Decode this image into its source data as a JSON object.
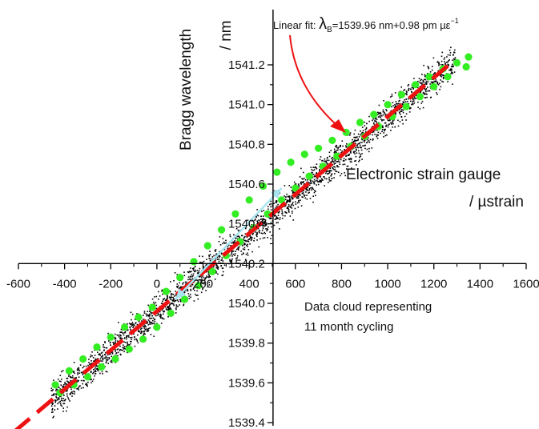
{
  "chart_data": {
    "type": "scatter",
    "title": "",
    "xlabel": "Electronic strain gauge",
    "xlabel_unit": "/ µstrain",
    "ylabel": "Bragg wavelength",
    "ylabel_unit": "/ nm",
    "xlim": [
      -600,
      1600
    ],
    "ylim": [
      1539.4,
      1541.3
    ],
    "x_ticks": [
      -600,
      -400,
      -200,
      0,
      200,
      400,
      600,
      800,
      1000,
      1200,
      1400,
      1600
    ],
    "x_tick_labels": [
      "-600",
      "-400",
      "-200",
      "0",
      "200",
      "400",
      "600",
      "800",
      "1000",
      "1200",
      "1400",
      "1600"
    ],
    "y_ticks": [
      1539.4,
      1539.6,
      1539.8,
      1540.0,
      1540.2,
      1540.4,
      1540.6,
      1540.8,
      1541.0,
      1541.2
    ],
    "y_tick_labels": [
      "1539.4",
      "1539.6",
      "1539.8",
      "1540.0",
      "1540.2",
      "1540.4",
      "1540.6",
      "1540.8",
      "1541.0",
      "1541.2"
    ],
    "axes_cross": {
      "x": 0,
      "y": 1540.2
    },
    "grid": false,
    "fit": {
      "label_prefix": "Linear fit: ",
      "lambda_symbol": "λ",
      "lambda_sub": "B",
      "label_rest": "=1539.96 nm+0.98 pm µε",
      "label_sup": "−1",
      "intercept": 1539.96,
      "slope_nm_per_ustrain": 0.00098,
      "x_range": [
        -620,
        1260
      ],
      "color": "#ee1111"
    },
    "cloud": {
      "annotation_lines": [
        "Data cloud representing",
        "11 month cycling"
      ],
      "color": "#000000",
      "x_range": [
        -460,
        1290
      ]
    },
    "envelope_series": [
      {
        "color": "#33ee22",
        "points": [
          [
            -440,
            1539.59
          ],
          [
            -380,
            1539.66
          ],
          [
            -320,
            1539.72
          ],
          [
            -260,
            1539.78
          ],
          [
            -200,
            1539.83
          ],
          [
            -140,
            1539.88
          ],
          [
            -80,
            1539.93
          ],
          [
            -20,
            1539.98
          ],
          [
            40,
            1540.06
          ],
          [
            100,
            1540.13
          ],
          [
            160,
            1540.21
          ],
          [
            220,
            1540.29
          ],
          [
            280,
            1540.37
          ],
          [
            340,
            1540.45
          ],
          [
            400,
            1540.52
          ],
          [
            460,
            1540.59
          ],
          [
            520,
            1540.66
          ],
          [
            580,
            1540.71
          ],
          [
            640,
            1540.75
          ],
          [
            700,
            1540.78
          ],
          [
            760,
            1540.82
          ],
          [
            820,
            1540.86
          ],
          [
            880,
            1540.91
          ],
          [
            940,
            1540.95
          ],
          [
            1000,
            1541.0
          ],
          [
            1060,
            1541.05
          ],
          [
            1120,
            1541.1
          ],
          [
            1180,
            1541.14
          ],
          [
            1240,
            1541.18
          ],
          [
            1300,
            1541.21
          ],
          [
            1350,
            1541.24
          ],
          [
            -420,
            1539.55
          ],
          [
            -360,
            1539.59
          ],
          [
            -300,
            1539.63
          ],
          [
            -240,
            1539.68
          ],
          [
            -180,
            1539.72
          ],
          [
            -120,
            1539.77
          ],
          [
            -60,
            1539.82
          ],
          [
            0,
            1539.88
          ],
          [
            60,
            1539.95
          ],
          [
            120,
            1540.02
          ],
          [
            180,
            1540.09
          ],
          [
            240,
            1540.16
          ],
          [
            300,
            1540.24
          ],
          [
            360,
            1540.31
          ],
          [
            420,
            1540.38
          ],
          [
            480,
            1540.45
          ],
          [
            540,
            1540.52
          ],
          [
            600,
            1540.58
          ],
          [
            660,
            1540.64
          ],
          [
            720,
            1540.69
          ],
          [
            780,
            1540.74
          ],
          [
            840,
            1540.79
          ],
          [
            900,
            1540.84
          ],
          [
            960,
            1540.89
          ],
          [
            1020,
            1540.94
          ],
          [
            1080,
            1540.99
          ],
          [
            1140,
            1541.04
          ],
          [
            1200,
            1541.09
          ],
          [
            1260,
            1541.14
          ],
          [
            1340,
            1541.19
          ]
        ]
      }
    ],
    "double_arrow": {
      "from": [
        80,
        1540.02
      ],
      "to": [
        540,
        1540.58
      ],
      "color": "#a8e4f0"
    },
    "fit_pointer": {
      "color": "#ee1111"
    }
  }
}
